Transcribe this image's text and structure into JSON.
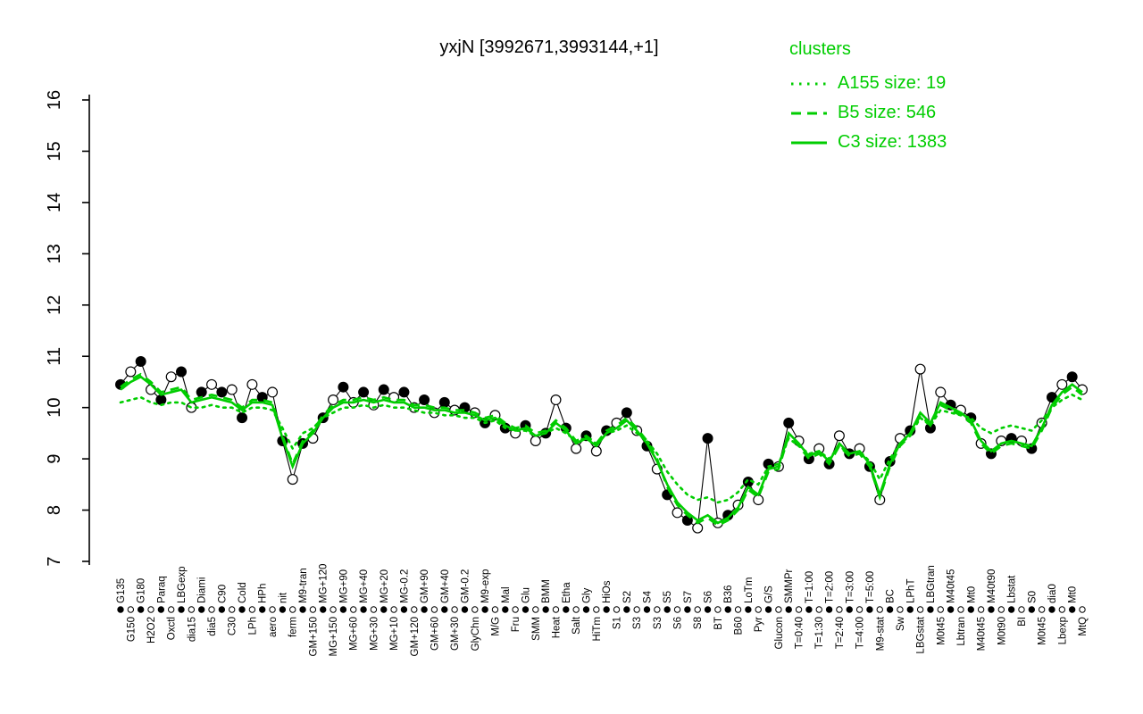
{
  "title": "yxjN [3992671,3993144,+1]",
  "legend": {
    "title": "clusters",
    "items": [
      {
        "label": "A155 size: 19",
        "style": "dotted"
      },
      {
        "label": "B5 size: 546",
        "style": "dashed"
      },
      {
        "label": "C3 size: 1383",
        "style": "solid"
      }
    ]
  },
  "colors": {
    "accent": "#00CD00",
    "points": "#000000",
    "background": "#FFFFFF"
  },
  "chart_data": {
    "type": "line",
    "title": "yxjN [3992671,3993144,+1]",
    "ylabel": "",
    "xlabel": "",
    "ylim": [
      7,
      16
    ],
    "yticks": [
      7,
      8,
      9,
      10,
      11,
      12,
      13,
      14,
      15,
      16
    ],
    "grid": false,
    "legend_position": "top-right",
    "categories": [
      "G135",
      "G150",
      "G180",
      "H2O2",
      "Paraq",
      "Oxctl",
      "LBGexp",
      "dia15",
      "Diami",
      "dia5",
      "C90",
      "C30",
      "Cold",
      "LPh",
      "HPh",
      "aero",
      "nit",
      "ferm",
      "M9-tran",
      "GM+150",
      "MG+120",
      "MG+150",
      "MG+90",
      "MG+60",
      "MG+40",
      "MG+30",
      "MG+20",
      "MG+10",
      "MG-0.2",
      "GM+120",
      "GM+90",
      "GM+60",
      "GM+40",
      "GM+30",
      "GM-0.2",
      "GlyChn",
      "M9-exp",
      "M/G",
      "Mal",
      "Fru",
      "Glu",
      "SMM",
      "BMM",
      "Heat",
      "Etha",
      "Salt",
      "Gly",
      "HiTm",
      "HiOs",
      "S1",
      "S2",
      "S3",
      "S4",
      "S3",
      "S5",
      "S6",
      "S7",
      "S8",
      "S6",
      "BT",
      "B36",
      "B60",
      "LoTm",
      "Pyr",
      "G/S",
      "Glucon",
      "SMMPr",
      "T=0:40",
      "T=1:00",
      "T=1:30",
      "T=2:00",
      "T=2:40",
      "T=3:00",
      "T=4:00",
      "T=5:00",
      "M9-stat",
      "BC",
      "Sw",
      "LPhT",
      "LBGstat",
      "LBGtran",
      "M0t45",
      "M40t45",
      "Lbtran",
      "Mt0",
      "M40t45",
      "M40t90",
      "M0t90",
      "Lbstat",
      "BI",
      "S0",
      "M0t45",
      "dia0",
      "Lbexp",
      "Mt0",
      "MtQ"
    ],
    "category_rows": [
      "A",
      "B",
      "A",
      "B",
      "A",
      "B",
      "A",
      "B",
      "A",
      "B",
      "A",
      "B",
      "A",
      "B",
      "A",
      "B",
      "A",
      "B",
      "A",
      "B",
      "A",
      "B",
      "A",
      "B",
      "A",
      "B",
      "A",
      "B",
      "A",
      "B",
      "A",
      "B",
      "A",
      "B",
      "A",
      "B",
      "A",
      "B",
      "A",
      "B",
      "A",
      "B",
      "A",
      "B",
      "A",
      "B",
      "A",
      "B",
      "A",
      "B",
      "A",
      "B",
      "A",
      "B",
      "A",
      "B",
      "A",
      "B",
      "A",
      "B",
      "A",
      "B",
      "A",
      "B",
      "A",
      "B",
      "A",
      "B",
      "A",
      "B",
      "A",
      "B",
      "A",
      "B",
      "A",
      "B",
      "A",
      "B",
      "A",
      "B",
      "A",
      "B",
      "A",
      "B",
      "A",
      "B",
      "A",
      "B",
      "A",
      "B",
      "A",
      "B",
      "A",
      "B",
      "A",
      "B"
    ],
    "series": [
      {
        "name": "samples",
        "type": "scatter+line",
        "color": "#000000",
        "marker_fill_pattern": "alternating",
        "values": [
          10.45,
          10.7,
          10.9,
          10.35,
          10.15,
          10.6,
          10.7,
          10.0,
          10.3,
          10.45,
          10.3,
          10.35,
          9.8,
          10.45,
          10.2,
          10.3,
          9.35,
          8.6,
          9.3,
          9.4,
          9.8,
          10.15,
          10.4,
          10.1,
          10.3,
          10.05,
          10.35,
          10.2,
          10.3,
          10.0,
          10.15,
          9.9,
          10.1,
          9.95,
          10.0,
          9.9,
          9.7,
          9.85,
          9.6,
          9.5,
          9.65,
          9.35,
          9.5,
          10.15,
          9.6,
          9.2,
          9.45,
          9.15,
          9.55,
          9.7,
          9.9,
          9.55,
          9.25,
          8.8,
          8.3,
          7.95,
          7.8,
          7.65,
          9.4,
          7.75,
          7.9,
          8.1,
          8.55,
          8.2,
          8.9,
          8.85,
          9.7,
          9.35,
          9.0,
          9.2,
          8.9,
          9.45,
          9.1,
          9.2,
          8.85,
          8.2,
          8.95,
          9.4,
          9.55,
          10.75,
          9.6,
          10.3,
          10.05,
          9.95,
          9.8,
          9.3,
          9.1,
          9.35,
          9.4,
          9.35,
          9.2,
          9.7,
          10.2,
          10.45,
          10.6,
          10.35
        ]
      },
      {
        "name": "A155",
        "size": 19,
        "style": "dotted",
        "color": "#00CD00",
        "values": [
          10.1,
          10.15,
          10.2,
          10.1,
          10.05,
          10.1,
          10.1,
          10.0,
          10.0,
          10.05,
          10.0,
          10.0,
          9.9,
          10.0,
          10.0,
          9.95,
          9.6,
          9.2,
          9.5,
          9.6,
          9.8,
          9.9,
          10.0,
          10.0,
          10.05,
          10.0,
          10.05,
          10.0,
          10.0,
          9.95,
          9.9,
          9.9,
          9.85,
          9.85,
          9.8,
          9.8,
          9.7,
          9.75,
          9.6,
          9.55,
          9.55,
          9.45,
          9.5,
          9.6,
          9.5,
          9.35,
          9.4,
          9.3,
          9.5,
          9.55,
          9.65,
          9.5,
          9.35,
          9.1,
          8.75,
          8.5,
          8.3,
          8.2,
          8.25,
          8.15,
          8.2,
          8.35,
          8.6,
          8.5,
          8.85,
          8.9,
          9.4,
          9.25,
          9.1,
          9.15,
          9.0,
          9.25,
          9.1,
          9.15,
          8.95,
          8.6,
          9.0,
          9.3,
          9.45,
          9.8,
          9.65,
          9.95,
          9.9,
          9.85,
          9.8,
          9.6,
          9.5,
          9.6,
          9.65,
          9.6,
          9.55,
          9.75,
          10.0,
          10.15,
          10.25,
          10.15
        ]
      },
      {
        "name": "B5",
        "size": 546,
        "style": "dashed",
        "color": "#00CD00",
        "values": [
          10.4,
          10.55,
          10.65,
          10.5,
          10.3,
          10.35,
          10.4,
          10.15,
          10.2,
          10.25,
          10.2,
          10.15,
          10.0,
          10.15,
          10.15,
          10.1,
          9.45,
          8.9,
          9.35,
          9.55,
          9.85,
          10.05,
          10.15,
          10.15,
          10.2,
          10.15,
          10.2,
          10.15,
          10.15,
          10.05,
          10.05,
          10.0,
          10.0,
          9.95,
          9.95,
          9.9,
          9.8,
          9.85,
          9.7,
          9.6,
          9.65,
          9.5,
          9.55,
          9.75,
          9.6,
          9.35,
          9.45,
          9.3,
          9.55,
          9.65,
          9.8,
          9.6,
          9.35,
          9.0,
          8.45,
          8.1,
          7.9,
          7.75,
          7.85,
          7.7,
          7.8,
          8.0,
          8.4,
          8.25,
          8.75,
          8.8,
          9.45,
          9.25,
          9.0,
          9.1,
          8.9,
          9.25,
          9.05,
          9.1,
          8.85,
          8.25,
          8.85,
          9.25,
          9.45,
          9.85,
          9.65,
          10.05,
          9.95,
          9.85,
          9.7,
          9.3,
          9.1,
          9.25,
          9.3,
          9.25,
          9.2,
          9.55,
          10.0,
          10.25,
          10.4,
          10.25
        ]
      },
      {
        "name": "C3",
        "size": 1383,
        "style": "solid",
        "color": "#00CD00",
        "values": [
          10.35,
          10.5,
          10.6,
          10.45,
          10.25,
          10.3,
          10.35,
          10.1,
          10.15,
          10.2,
          10.15,
          10.1,
          9.95,
          10.1,
          10.1,
          10.05,
          9.4,
          8.85,
          9.3,
          9.5,
          9.8,
          10.0,
          10.1,
          10.1,
          10.15,
          10.1,
          10.15,
          10.1,
          10.1,
          10.0,
          10.0,
          9.95,
          9.95,
          9.9,
          9.9,
          9.85,
          9.75,
          9.8,
          9.65,
          9.55,
          9.6,
          9.45,
          9.5,
          9.7,
          9.55,
          9.3,
          9.4,
          9.25,
          9.5,
          9.6,
          9.75,
          9.55,
          9.3,
          8.95,
          8.5,
          8.15,
          7.95,
          7.8,
          7.9,
          7.75,
          7.85,
          8.05,
          8.45,
          8.3,
          8.8,
          8.85,
          9.5,
          9.3,
          9.05,
          9.15,
          8.95,
          9.3,
          9.1,
          9.15,
          8.9,
          8.3,
          8.9,
          9.3,
          9.5,
          9.9,
          9.7,
          10.1,
          10.0,
          9.9,
          9.75,
          9.35,
          9.15,
          9.3,
          9.35,
          9.3,
          9.25,
          9.6,
          10.05,
          10.3,
          10.45,
          10.3
        ]
      }
    ]
  }
}
